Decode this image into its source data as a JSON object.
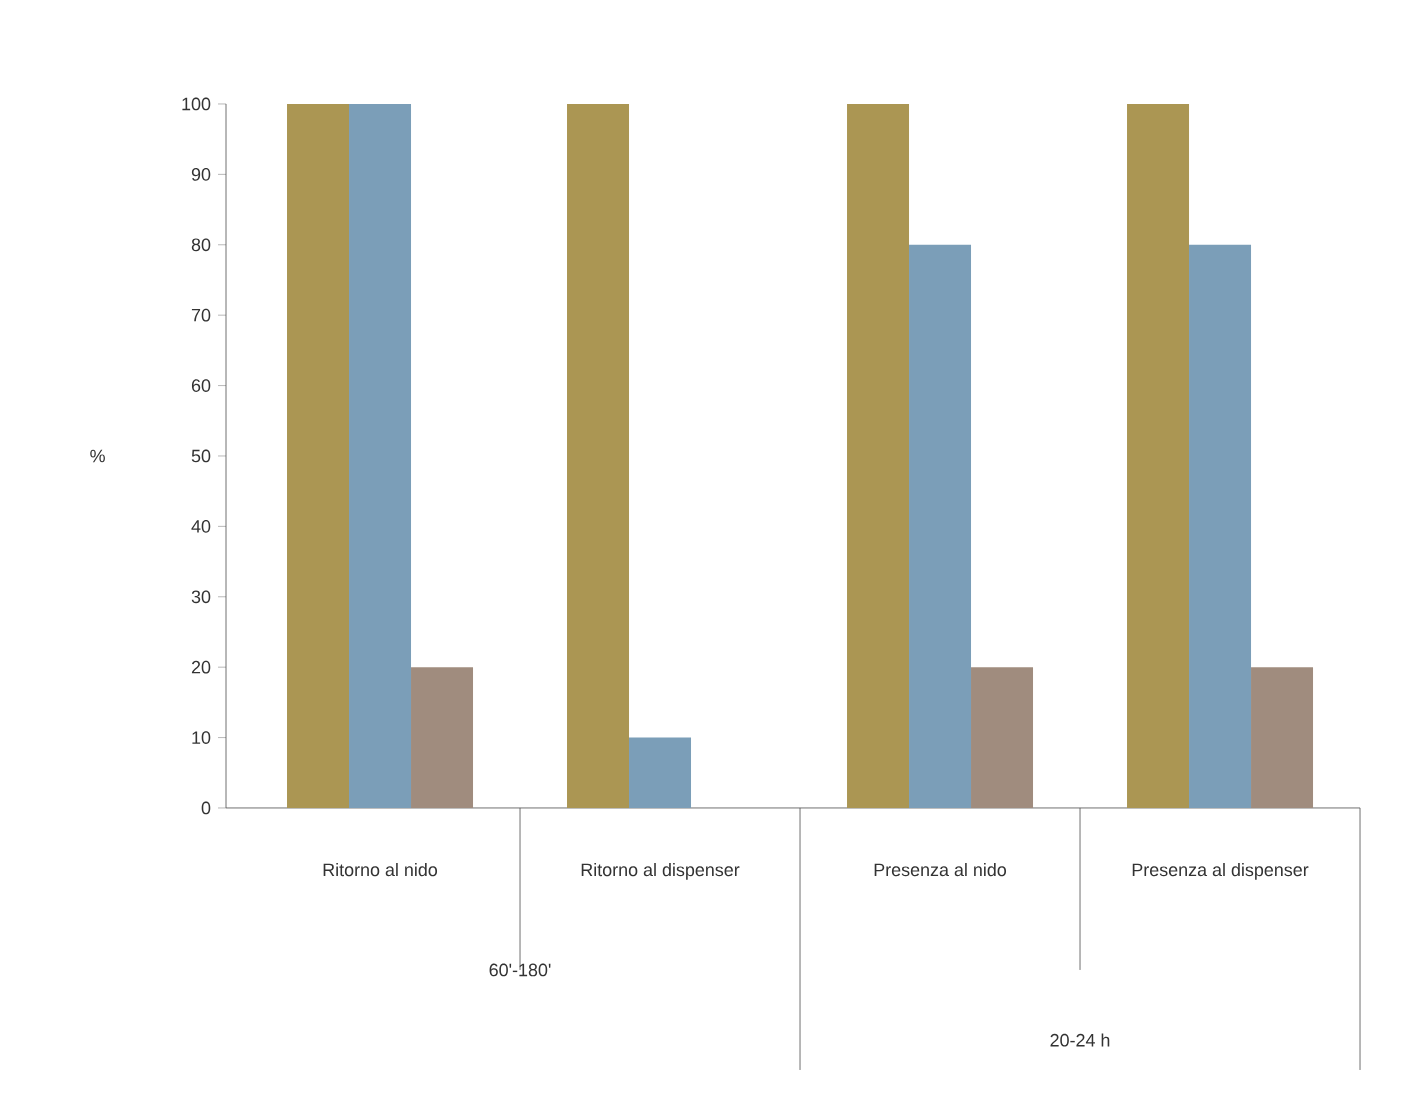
{
  "chart_data": {
    "type": "bar",
    "ylabel": "%",
    "categories": [
      "Ritorno al nido",
      "Ritorno al dispenser",
      "Presenza al nido",
      "Presenza al dispenser"
    ],
    "series": [
      {
        "color": "#ab9653",
        "values": [
          100,
          100,
          100,
          100
        ]
      },
      {
        "color": "#7b9eb8",
        "values": [
          100,
          10,
          80,
          80
        ]
      },
      {
        "color": "#a08c7e",
        "values": [
          20,
          null,
          20,
          20
        ]
      }
    ],
    "ylim": [
      0,
      100
    ],
    "yticks": [
      0,
      10,
      20,
      30,
      40,
      50,
      60,
      70,
      80,
      90,
      100
    ],
    "annotations": [
      "60'-180'",
      "20-24 h"
    ]
  }
}
